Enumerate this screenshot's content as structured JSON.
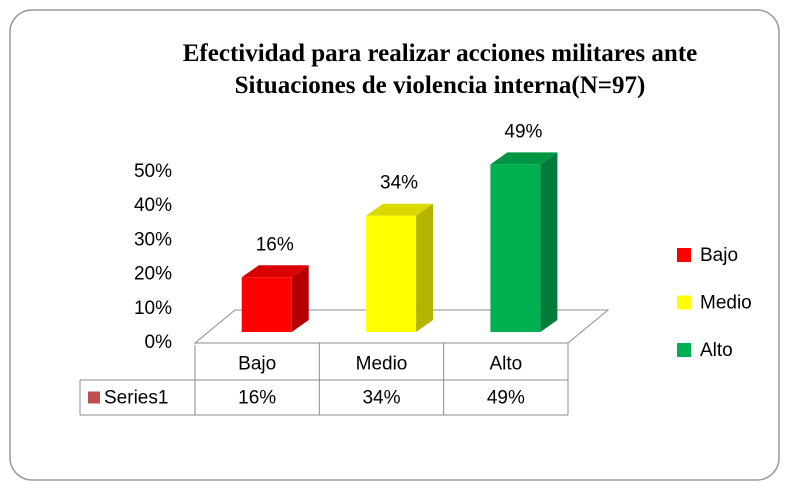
{
  "chart_data": {
    "type": "bar3d",
    "title": "Efectividad para realizar acciones militares ante Situaciones de violencia interna(N=97)",
    "categories": [
      "Bajo",
      "Medio",
      "Alto"
    ],
    "series": [
      {
        "name": "Series1",
        "color": "#c0504d",
        "values": [
          16,
          34,
          49
        ],
        "value_labels": [
          "16%",
          "34%",
          "49%"
        ]
      }
    ],
    "point_colors": [
      "#ff0000",
      "#ffff00",
      "#00b050"
    ],
    "ylim": [
      0,
      50
    ],
    "yticks": [
      {
        "value": 0,
        "label": "0%"
      },
      {
        "value": 10,
        "label": "10%"
      },
      {
        "value": 20,
        "label": "20%"
      },
      {
        "value": 30,
        "label": "30%"
      },
      {
        "value": 40,
        "label": "40%"
      },
      {
        "value": 50,
        "label": "50%"
      }
    ],
    "legend": "right",
    "data_table": true
  }
}
